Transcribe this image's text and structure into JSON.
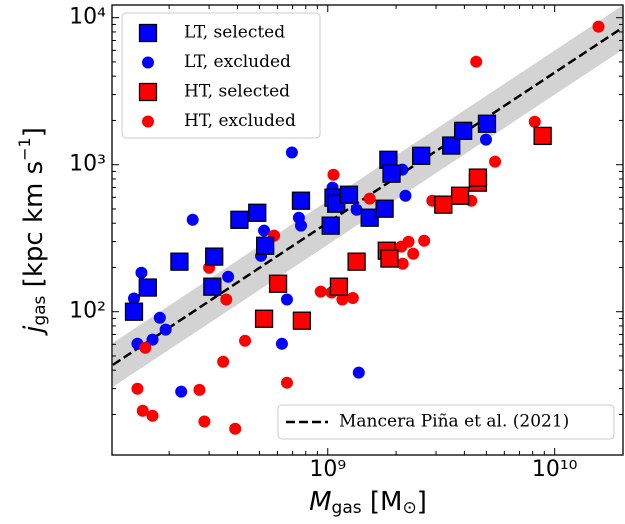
{
  "chart_data": {
    "type": "scatter",
    "xlabel": [
      "M",
      "gas",
      " [M",
      "⊙",
      "]"
    ],
    "ylabel": [
      "j",
      "gas",
      " [kpc km s",
      "−1",
      "]"
    ],
    "xscale": "log",
    "yscale": "log",
    "xlim": [
      112000000.0,
      20000000000.0
    ],
    "ylim": [
      10.6,
      12200
    ],
    "xticks": [
      {
        "value": 1000000000.0,
        "label": "10⁹"
      },
      {
        "value": 10000000000.0,
        "label": "10¹⁰"
      }
    ],
    "yticks": [
      {
        "value": 100,
        "label": "10²"
      },
      {
        "value": 1000,
        "label": "10³"
      },
      {
        "value": 10000,
        "label": "10⁴"
      }
    ],
    "xminorticks": [
      200000000.0,
      300000000.0,
      400000000.0,
      500000000.0,
      600000000.0,
      700000000.0,
      800000000.0,
      900000000.0,
      2000000000.0,
      3000000000.0,
      4000000000.0,
      5000000000.0,
      6000000000.0,
      7000000000.0,
      8000000000.0,
      9000000000.0,
      20000000000.0
    ],
    "yminorticks": [
      20,
      30,
      40,
      50,
      60,
      70,
      80,
      90,
      200,
      300,
      400,
      500,
      600,
      700,
      800,
      900,
      2000,
      3000,
      4000,
      5000,
      6000,
      7000,
      8000,
      9000
    ],
    "legend": "upper left",
    "series": [
      {
        "name": "LT, selected",
        "marker": "square",
        "color": "#0000ff",
        "x": [
          140000000.0,
          161000000.0,
          222000000.0,
          316000000.0,
          310000000.0,
          408000000.0,
          489000000.0,
          530000000.0,
          762000000.0,
          1030000000.0,
          1060000000.0,
          1090000000.0,
          1240000000.0,
          1530000000.0,
          1780000000.0,
          1850000000.0,
          1910000000.0,
          2580000000.0,
          3500000000.0,
          3950000000.0,
          5030000000.0
        ],
        "values": [
          100,
          146,
          219,
          237,
          148,
          422,
          471,
          281,
          569,
          385,
          597,
          543,
          625,
          436,
          502,
          1080,
          869,
          1150,
          1350,
          1700,
          1900
        ]
      },
      {
        "name": "LT, excluded",
        "marker": "circle",
        "color": "#0000ff",
        "x": [
          151000000.0,
          140000000.0,
          145000000.0,
          169000000.0,
          182000000.0,
          193000000.0,
          254000000.0,
          226000000.0,
          364000000.0,
          524000000.0,
          508000000.0,
          695000000.0,
          746000000.0,
          762000000.0,
          628000000.0,
          661000000.0,
          1370000000.0,
          1050000000.0,
          1340000000.0,
          2130000000.0,
          2200000000.0,
          4980000000.0
        ],
        "values": [
          184,
          123,
          60.5,
          64.6,
          91,
          75.5,
          422,
          28.6,
          173,
          356,
          240,
          1210,
          436,
          385,
          60.5,
          121,
          38.5,
          698,
          494,
          925,
          615,
          1480
        ]
      },
      {
        "name": "HT, selected",
        "marker": "square",
        "color": "#ff0000",
        "x": [
          524000000.0,
          604000000.0,
          769000000.0,
          1120000000.0,
          1340000000.0,
          1820000000.0,
          1870000000.0,
          3230000000.0,
          3830000000.0,
          4590000000.0,
          4590000000.0,
          8850000000.0
        ],
        "values": [
          89.6,
          155,
          86.9,
          148,
          219,
          260,
          230,
          535,
          615,
          755,
          817,
          1570
        ]
      },
      {
        "name": "HT, excluded",
        "marker": "circle",
        "color": "#ff0000",
        "x": [
          157000000.0,
          145000000.0,
          153000000.0,
          169000000.0,
          272000000.0,
          286000000.0,
          300000000.0,
          346000000.0,
          357000000.0,
          391000000.0,
          432000000.0,
          580000000.0,
          661000000.0,
          931000000.0,
          1040000000.0,
          1060000000.0,
          1160000000.0,
          1290000000.0,
          1530000000.0,
          2110000000.0,
          2140000000.0,
          2270000000.0,
          2380000000.0,
          2660000000.0,
          2890000000.0,
          4290000000.0,
          4510000000.0,
          5460000000.0,
          8170000000.0,
          15600000000.0
        ],
        "values": [
          56.9,
          29.9,
          21.2,
          19.6,
          29.4,
          17.9,
          199,
          45.7,
          121,
          16.0,
          63.5,
          329,
          32.9,
          137,
          135,
          855,
          121,
          124,
          588,
          277,
          212,
          299,
          248,
          304,
          569,
          569,
          5020,
          1050,
          1960,
          8690
        ]
      }
    ],
    "fit": {
      "name": "Mancera Piña et al. (2021)",
      "color": "#000000",
      "x": [
        113000000.0,
        19900000000.0
      ],
      "values": [
        43.5,
        8550
      ],
      "lower": [
        30.8,
        6050
      ],
      "upper": [
        61.4,
        12080
      ],
      "band_color": "#d3d3d3"
    },
    "fit_legend": "lower right"
  }
}
